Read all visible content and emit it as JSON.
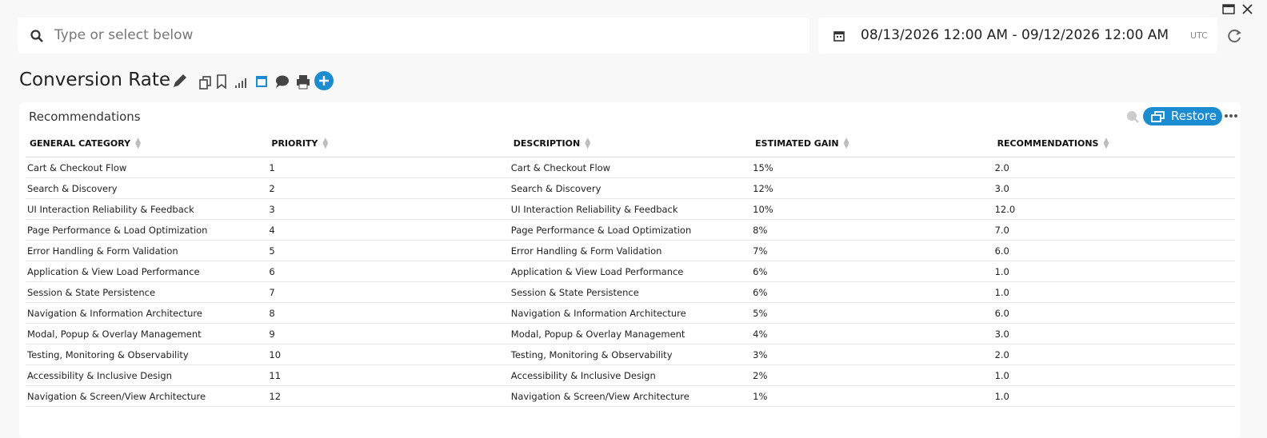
{
  "search": {
    "placeholder": "Type or select below"
  },
  "date_range": {
    "range": "08/13/2026 12:00 AM - 09/12/2026 12:00 AM",
    "timezone": "UTC"
  },
  "header": {
    "title": "Conversion Rate"
  },
  "panel": {
    "title": "Recommendations",
    "restore_button": "Restore"
  },
  "table": {
    "columns": [
      "GENERAL CATEGORY",
      "PRIORITY",
      "DESCRIPTION",
      "ESTIMATED GAIN",
      "RECOMMENDATIONS"
    ],
    "rows": [
      [
        "Cart & Checkout Flow",
        1,
        "Cart & Checkout Flow",
        "15%",
        "2.0"
      ],
      [
        "Search & Discovery",
        2,
        "Search & Discovery",
        "12%",
        "3.0"
      ],
      [
        "UI Interaction Reliability & Feedback",
        3,
        "UI Interaction Reliability & Feedback",
        "10%",
        "12.0"
      ],
      [
        "Page Performance & Load Optimization",
        4,
        "Page Performance & Load Optimization",
        "8%",
        "7.0"
      ],
      [
        "Error Handling & Form Validation",
        5,
        "Error Handling & Form Validation",
        "7%",
        "6.0"
      ],
      [
        "Application & View Load Performance",
        6,
        "Application & View Load Performance",
        "6%",
        "1.0"
      ],
      [
        "Session & State Persistence",
        7,
        "Session & State Persistence",
        "6%",
        "1.0"
      ],
      [
        "Navigation & Information Architecture",
        8,
        "Navigation & Information Architecture",
        "5%",
        "6.0"
      ],
      [
        "Modal, Popup & Overlay Management",
        9,
        "Modal, Popup & Overlay Management",
        "4%",
        "3.0"
      ],
      [
        "Testing, Monitoring & Observability",
        10,
        "Testing, Monitoring & Observability",
        "3%",
        "2.0"
      ],
      [
        "Accessibility & Inclusive Design",
        11,
        "Accessibility & Inclusive Design",
        "2%",
        "1.0"
      ],
      [
        "Navigation & Screen/View Architecture",
        12,
        "Navigation & Screen/View Architecture",
        "1%",
        "1.0"
      ]
    ]
  }
}
